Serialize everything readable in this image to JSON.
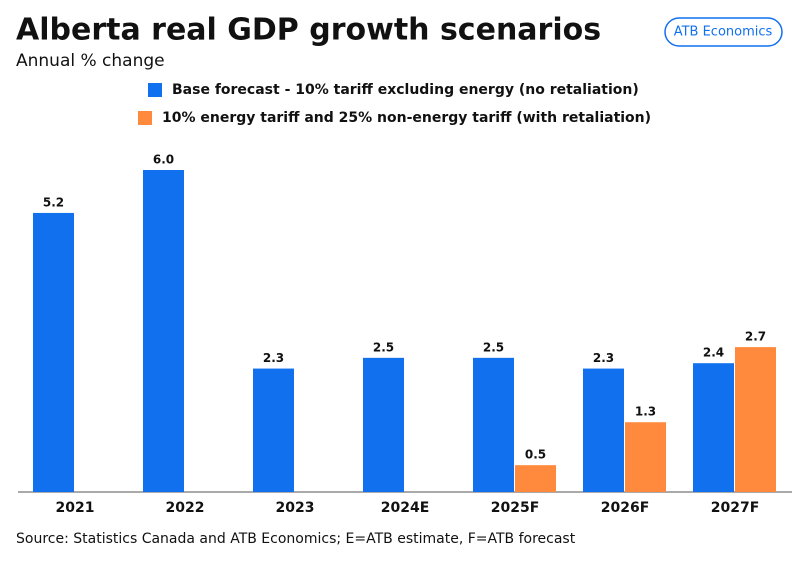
{
  "chart_data": {
    "type": "bar",
    "title": "Alberta real GDP growth scenarios",
    "subtitle": "Annual % change",
    "badge": "ATB Economics",
    "source": "Source: Statistics Canada and ATB Economics; E=ATB estimate, F=ATB forecast",
    "categories": [
      "2021",
      "2022",
      "2023",
      "2024E",
      "2025F",
      "2026F",
      "2027F"
    ],
    "series": [
      {
        "name": "Base forecast - 10% tariff excluding energy (no retaliation)",
        "color": "#1170ee",
        "values": [
          5.2,
          6.0,
          2.3,
          2.5,
          2.5,
          2.3,
          2.4
        ],
        "value_labels": [
          "5.2",
          "6.0",
          "2.3",
          "2.5",
          "2.5",
          "2.3",
          "2.4"
        ]
      },
      {
        "name": "10% energy tariff and 25% non-energy tariff (with retaliation)",
        "color": "#ff8a3d",
        "values": [
          null,
          null,
          null,
          null,
          0.5,
          1.3,
          2.7
        ],
        "value_labels": [
          null,
          null,
          null,
          null,
          "0.5",
          "1.3",
          "2.7"
        ]
      }
    ]
  }
}
